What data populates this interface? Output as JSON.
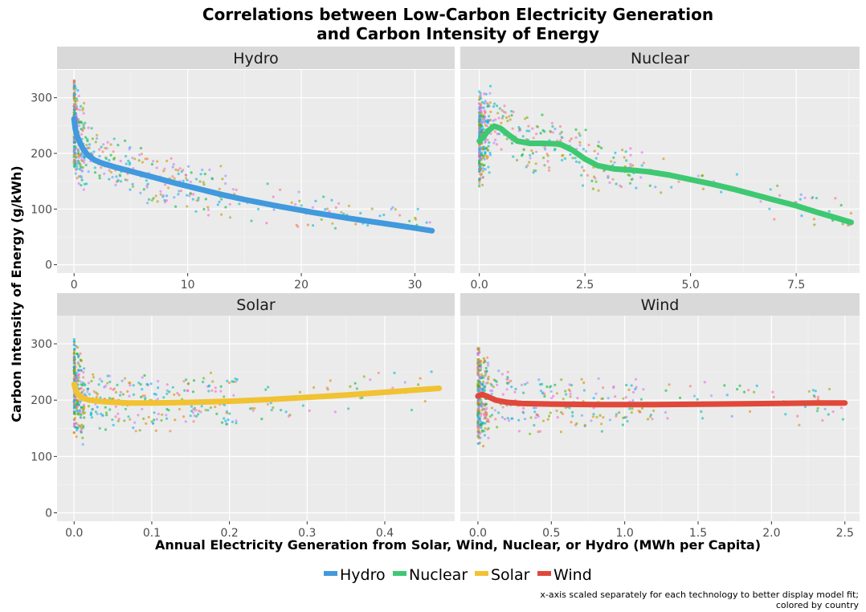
{
  "chart_data": {
    "type": "scatter",
    "title": "Correlations between Low-Carbon Electricity Generation",
    "subtitle": "and Carbon Intensity of Energy",
    "xlabel": "Annual Electricity Generation from Solar, Wind, Nuclear, or Hydro (MWh per Capita)",
    "ylabel": "Carbon Intensity of Energy (g/kWh)",
    "caption_line1": "x-axis scaled separately for each technology to better display model fit;",
    "caption_line2": "colored by country",
    "legend_position": "bottom",
    "ylim": [
      -15,
      350
    ],
    "y_ticks": [
      0,
      100,
      200,
      300
    ],
    "y_tick_labels": [
      "0",
      "100",
      "200",
      "300"
    ],
    "legend": [
      {
        "name": "Hydro",
        "color": "#4199de"
      },
      {
        "name": "Nuclear",
        "color": "#3ec872"
      },
      {
        "name": "Solar",
        "color": "#f1c232"
      },
      {
        "name": "Wind",
        "color": "#e0483a"
      }
    ],
    "panels": [
      {
        "name": "Hydro",
        "color": "#4199de",
        "xlim": [
          -1.5,
          33.5
        ],
        "x_ticks": [
          0,
          10,
          20,
          30
        ],
        "x_tick_labels": [
          "0",
          "10",
          "20",
          "30"
        ],
        "fit": {
          "x": [
            0,
            0.1,
            0.25,
            0.5,
            0.8,
            1.2,
            1.8,
            2.5,
            3.5,
            5,
            7,
            9,
            11,
            13,
            15,
            18,
            21,
            24,
            27,
            30,
            31.5
          ],
          "y": [
            262,
            245,
            232,
            220,
            208,
            197,
            188,
            182,
            176,
            168,
            157,
            146,
            136,
            126,
            117,
            105,
            94,
            84,
            75,
            66,
            61
          ]
        }
      },
      {
        "name": "Nuclear",
        "color": "#3ec872",
        "xlim": [
          -0.45,
          9.0
        ],
        "x_ticks": [
          0,
          2.5,
          5,
          7.5
        ],
        "x_tick_labels": [
          "0.0",
          "2.5",
          "5.0",
          "7.5"
        ],
        "fit": {
          "x": [
            0,
            0.1,
            0.2,
            0.35,
            0.5,
            0.7,
            0.9,
            1.2,
            1.5,
            1.9,
            2.2,
            2.5,
            2.8,
            3.2,
            3.6,
            4.0,
            4.5,
            5.0,
            5.5,
            6.0,
            6.5,
            7.0,
            7.5,
            8.0,
            8.5,
            8.8
          ],
          "y": [
            222,
            230,
            240,
            249,
            245,
            233,
            222,
            218,
            218,
            217,
            206,
            190,
            178,
            172,
            170,
            167,
            161,
            153,
            145,
            136,
            126,
            116,
            106,
            94,
            83,
            76
          ]
        }
      },
      {
        "name": "Solar",
        "color": "#f1c232",
        "xlim": [
          -0.022,
          0.49
        ],
        "x_ticks": [
          0,
          0.1,
          0.2,
          0.3,
          0.4
        ],
        "x_tick_labels": [
          "0.0",
          "0.1",
          "0.2",
          "0.3",
          "0.4"
        ],
        "fit": {
          "x": [
            0,
            0.002,
            0.005,
            0.01,
            0.02,
            0.04,
            0.07,
            0.1,
            0.15,
            0.2,
            0.25,
            0.3,
            0.35,
            0.4,
            0.45,
            0.47
          ],
          "y": [
            228,
            218,
            210,
            204,
            200,
            197,
            195,
            195,
            196,
            198,
            201,
            205,
            209,
            214,
            219,
            221
          ]
        }
      },
      {
        "name": "Wind",
        "color": "#e0483a",
        "xlim": [
          -0.12,
          2.6
        ],
        "x_ticks": [
          0,
          0.5,
          1.0,
          1.5,
          2.0,
          2.5
        ],
        "x_tick_labels": [
          "0.0",
          "0.5",
          "1.0",
          "1.5",
          "2.0",
          "2.5"
        ],
        "fit": {
          "x": [
            0,
            0.03,
            0.07,
            0.12,
            0.2,
            0.3,
            0.5,
            0.8,
            1.2,
            1.6,
            2.0,
            2.3,
            2.5
          ],
          "y": [
            207,
            210,
            206,
            200,
            196,
            194,
            193,
            192,
            192,
            193,
            194,
            195,
            195
          ]
        }
      }
    ]
  }
}
